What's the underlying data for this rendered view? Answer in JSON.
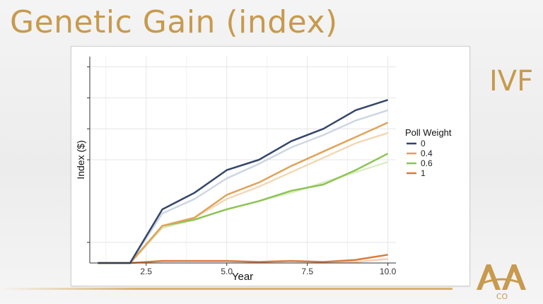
{
  "slide": {
    "title": "Genetic Gain (index)",
    "side_label": "IVF",
    "logo_text": "CO"
  },
  "colors": {
    "title": "#c89a4e",
    "series_0": "#34466b",
    "series_04": "#e0a35a",
    "series_06": "#8dc455",
    "series_1": "#dc7a3a"
  },
  "chart_data": {
    "type": "line",
    "title": "",
    "xlabel": "Year",
    "ylabel": "Index ($)",
    "xlim": [
      0.75,
      10.25
    ],
    "ylim": [
      0,
      100
    ],
    "xticks": [
      2.5,
      5.0,
      7.5,
      10.0
    ],
    "xtick_labels": [
      "2.5",
      "5.0",
      "7.5",
      "10.0"
    ],
    "yticks": [
      10,
      50,
      65,
      80,
      95
    ],
    "ytick_labels": [
      "",
      "",
      "",
      "",
      ""
    ],
    "grid": true,
    "legend": {
      "title": "Poll Weight",
      "placement": "right",
      "entries": [
        "0",
        "0.4",
        "0.6",
        "1"
      ]
    },
    "x": [
      1,
      2,
      3,
      4,
      5,
      6,
      7,
      8,
      9,
      10
    ],
    "series": [
      {
        "name": "0",
        "color": "#34466b",
        "values": [
          0,
          0,
          26,
          34,
          45,
          50,
          59,
          65,
          74,
          79
        ]
      },
      {
        "name": "0.4",
        "color": "#e0a35a",
        "values": [
          0,
          0,
          18,
          22,
          33,
          39,
          47,
          54,
          61,
          68
        ]
      },
      {
        "name": "0.6",
        "color": "#8dc455",
        "values": [
          0,
          0,
          18,
          21,
          26,
          30,
          35,
          38,
          45,
          53
        ]
      },
      {
        "name": "1",
        "color": "#dc7a3a",
        "values": [
          0,
          0,
          1,
          1,
          1,
          0.5,
          1,
          0.5,
          1.5,
          4
        ]
      }
    ],
    "faded_series": [
      {
        "color": "#c9d2e0",
        "values": [
          0,
          0,
          24,
          31,
          41,
          48,
          56,
          62,
          69,
          74
        ]
      },
      {
        "color": "#f1d4ae",
        "values": [
          0,
          0,
          17,
          22,
          31,
          37,
          44,
          51,
          58,
          63
        ]
      },
      {
        "color": "#d6ecbf",
        "values": [
          0,
          0,
          17,
          21,
          26,
          30,
          34,
          39,
          44,
          49
        ]
      },
      {
        "color": "#f3c9ab",
        "values": [
          0,
          0,
          1,
          1,
          1,
          0.5,
          1,
          0.5,
          0.5,
          2
        ]
      }
    ]
  }
}
